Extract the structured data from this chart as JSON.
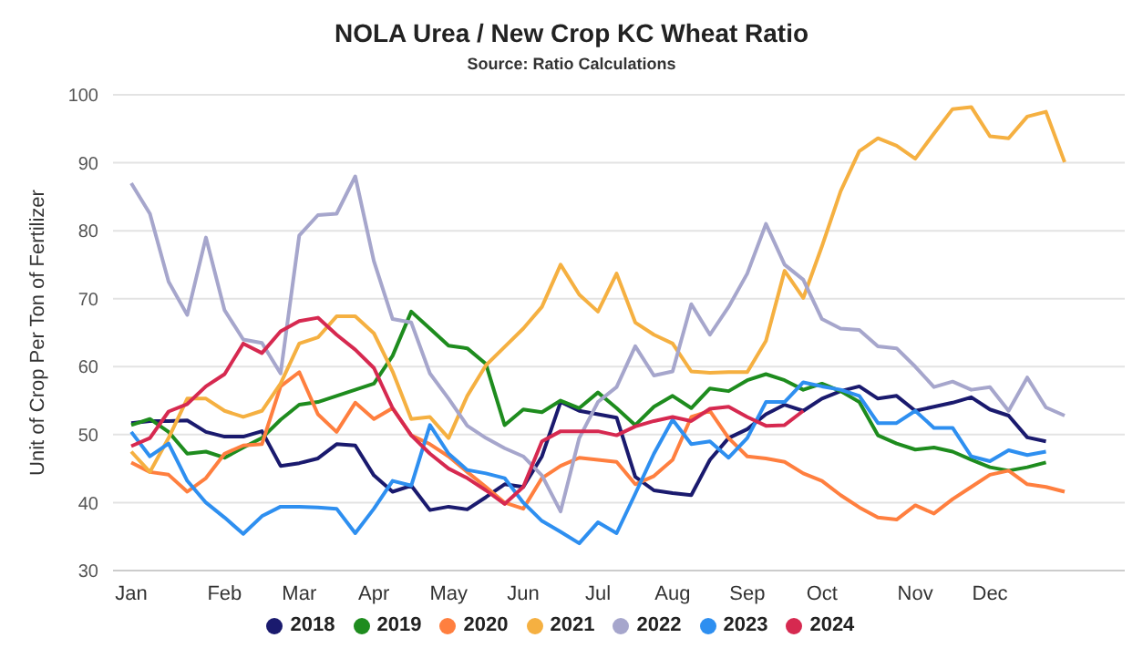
{
  "chart_data": {
    "type": "line",
    "title": "NOLA Urea / New Crop KC Wheat Ratio",
    "subtitle": "Source: Ratio Calculations",
    "ylabel": "Unit of Crop Per Ton of Fertilizer",
    "categories": [
      "Jan",
      null,
      null,
      null,
      null,
      "Feb",
      null,
      null,
      null,
      "Mar",
      null,
      null,
      null,
      "Apr",
      null,
      null,
      null,
      "May",
      null,
      null,
      null,
      "Jun",
      null,
      null,
      null,
      "Jul",
      null,
      null,
      null,
      "Aug",
      null,
      null,
      null,
      "Sep",
      null,
      null,
      null,
      "Oct",
      null,
      null,
      null,
      null,
      "Nov",
      null,
      null,
      null,
      "Dec",
      null,
      null,
      null,
      null
    ],
    "ylim": [
      30,
      100
    ],
    "yticks": [
      30,
      40,
      50,
      60,
      70,
      80,
      90,
      100
    ],
    "grid": "y",
    "legend": "bottom",
    "series": [
      {
        "name": "2018",
        "color": "#1a1a6e",
        "values": [
          51.7,
          52,
          52,
          52.1,
          50.4,
          49.7,
          49.7,
          50.5,
          45.4,
          45.8,
          46.5,
          48.6,
          48.4,
          44,
          41.6,
          42.5,
          38.9,
          39.4,
          39,
          40.8,
          42.7,
          42.3,
          46.8,
          54.8,
          53.5,
          53,
          52.5,
          43.8,
          41.8,
          41.4,
          41.1,
          46.3,
          49.5,
          50.8,
          53,
          54.4,
          53.5,
          55.3,
          56.4,
          57.1,
          55.3,
          55.7,
          53.5,
          54.1,
          54.7,
          55.5,
          53.7,
          52.8,
          49.6,
          49,
          null
        ]
      },
      {
        "name": "2019",
        "color": "#1e8c1e",
        "values": [
          51.4,
          52.3,
          50.4,
          47.2,
          47.5,
          46.6,
          48.1,
          49.5,
          52.2,
          54.4,
          54.8,
          55.7,
          56.6,
          57.5,
          61.6,
          68.1,
          65.6,
          63.1,
          62.7,
          60.4,
          51.4,
          53.7,
          53.3,
          55,
          53.9,
          56.2,
          53.9,
          51.4,
          54.1,
          55.7,
          53.9,
          56.8,
          56.4,
          58,
          58.9,
          58,
          56.6,
          57.5,
          56.4,
          54.8,
          49.9,
          48.7,
          47.8,
          48.1,
          47.5,
          46.3,
          45.2,
          44.7,
          45.2,
          45.9,
          null
        ]
      },
      {
        "name": "2020",
        "color": "#ff7f3f",
        "values": [
          45.9,
          44.5,
          44.1,
          41.6,
          43.6,
          47.2,
          48.4,
          48.6,
          57.1,
          59.2,
          53,
          50.4,
          54.7,
          52.3,
          53.9,
          49.9,
          48.6,
          46.8,
          44.5,
          42.3,
          40,
          39.1,
          43.6,
          45.4,
          46.6,
          46.3,
          46,
          42.7,
          43.9,
          46.3,
          52.6,
          53.5,
          49.5,
          46.8,
          46.5,
          46,
          44.3,
          43.2,
          41.1,
          39.3,
          37.8,
          37.5,
          39.6,
          38.4,
          40.5,
          42.3,
          44.1,
          44.7,
          42.7,
          42.3,
          41.6
        ]
      },
      {
        "name": "2021",
        "color": "#f5b041",
        "values": [
          47.5,
          44.5,
          49.5,
          55.3,
          55.3,
          53.5,
          52.6,
          53.5,
          57.5,
          63.4,
          64.3,
          67.4,
          67.4,
          64.9,
          59.3,
          52.3,
          52.6,
          49.5,
          55.7,
          60.2,
          62.9,
          65.6,
          68.8,
          75,
          70.6,
          68.1,
          73.7,
          66.5,
          64.7,
          63.4,
          59.3,
          59.1,
          59.2,
          59.2,
          63.8,
          74.1,
          70.1,
          77.7,
          85.8,
          91.7,
          93.6,
          92.5,
          90.6,
          94.3,
          97.9,
          98.2,
          93.9,
          93.6,
          96.8,
          97.5,
          90.1
        ]
      },
      {
        "name": "2022",
        "color": "#a6a6cc",
        "values": [
          87,
          82.5,
          72.5,
          67.6,
          79,
          68.3,
          64,
          63.5,
          59,
          79.3,
          82.3,
          82.5,
          88,
          75.5,
          67,
          66.5,
          59,
          55.3,
          51.3,
          49.5,
          48,
          46.8,
          44,
          38.7,
          49.5,
          54.8,
          57,
          63,
          58.7,
          59.3,
          69.2,
          64.7,
          68.8,
          73.7,
          81,
          75,
          72.8,
          67,
          65.6,
          65.4,
          63,
          62.7,
          60,
          57,
          57.8,
          56.6,
          57,
          53.5,
          58.4,
          54,
          52.8
        ]
      },
      {
        "name": "2023",
        "color": "#2e8ff0",
        "values": [
          50.4,
          46.8,
          48.7,
          43.2,
          40,
          37.8,
          35.4,
          38,
          39.4,
          39.4,
          39.3,
          39.1,
          35.5,
          39.1,
          43.2,
          42.5,
          51.4,
          47.2,
          44.8,
          44.3,
          43.6,
          40,
          37.3,
          35.7,
          34,
          37.1,
          35.5,
          41.3,
          47.2,
          52.2,
          48.6,
          49,
          46.6,
          49.5,
          54.8,
          54.8,
          57.7,
          57.1,
          56.6,
          55.7,
          51.7,
          51.7,
          53.5,
          51,
          51,
          46.8,
          46.1,
          47.7,
          47,
          47.5,
          null
        ]
      },
      {
        "name": "2024",
        "color": "#d62950",
        "values": [
          48.3,
          49.5,
          53.4,
          54.5,
          57.1,
          58.9,
          63.4,
          62,
          65.2,
          66.7,
          67.2,
          64.7,
          62.5,
          59.8,
          53.9,
          49.9,
          47.2,
          45,
          43.6,
          41.8,
          39.8,
          42.3,
          49,
          50.5,
          50.5,
          50.5,
          49.9,
          51.2,
          52,
          52.6,
          52,
          53.8,
          54.1,
          52.6,
          51.3,
          51.4,
          53.5,
          null,
          null,
          null,
          null,
          null,
          null,
          null,
          null,
          null,
          null,
          null,
          null,
          null,
          null
        ]
      }
    ]
  }
}
